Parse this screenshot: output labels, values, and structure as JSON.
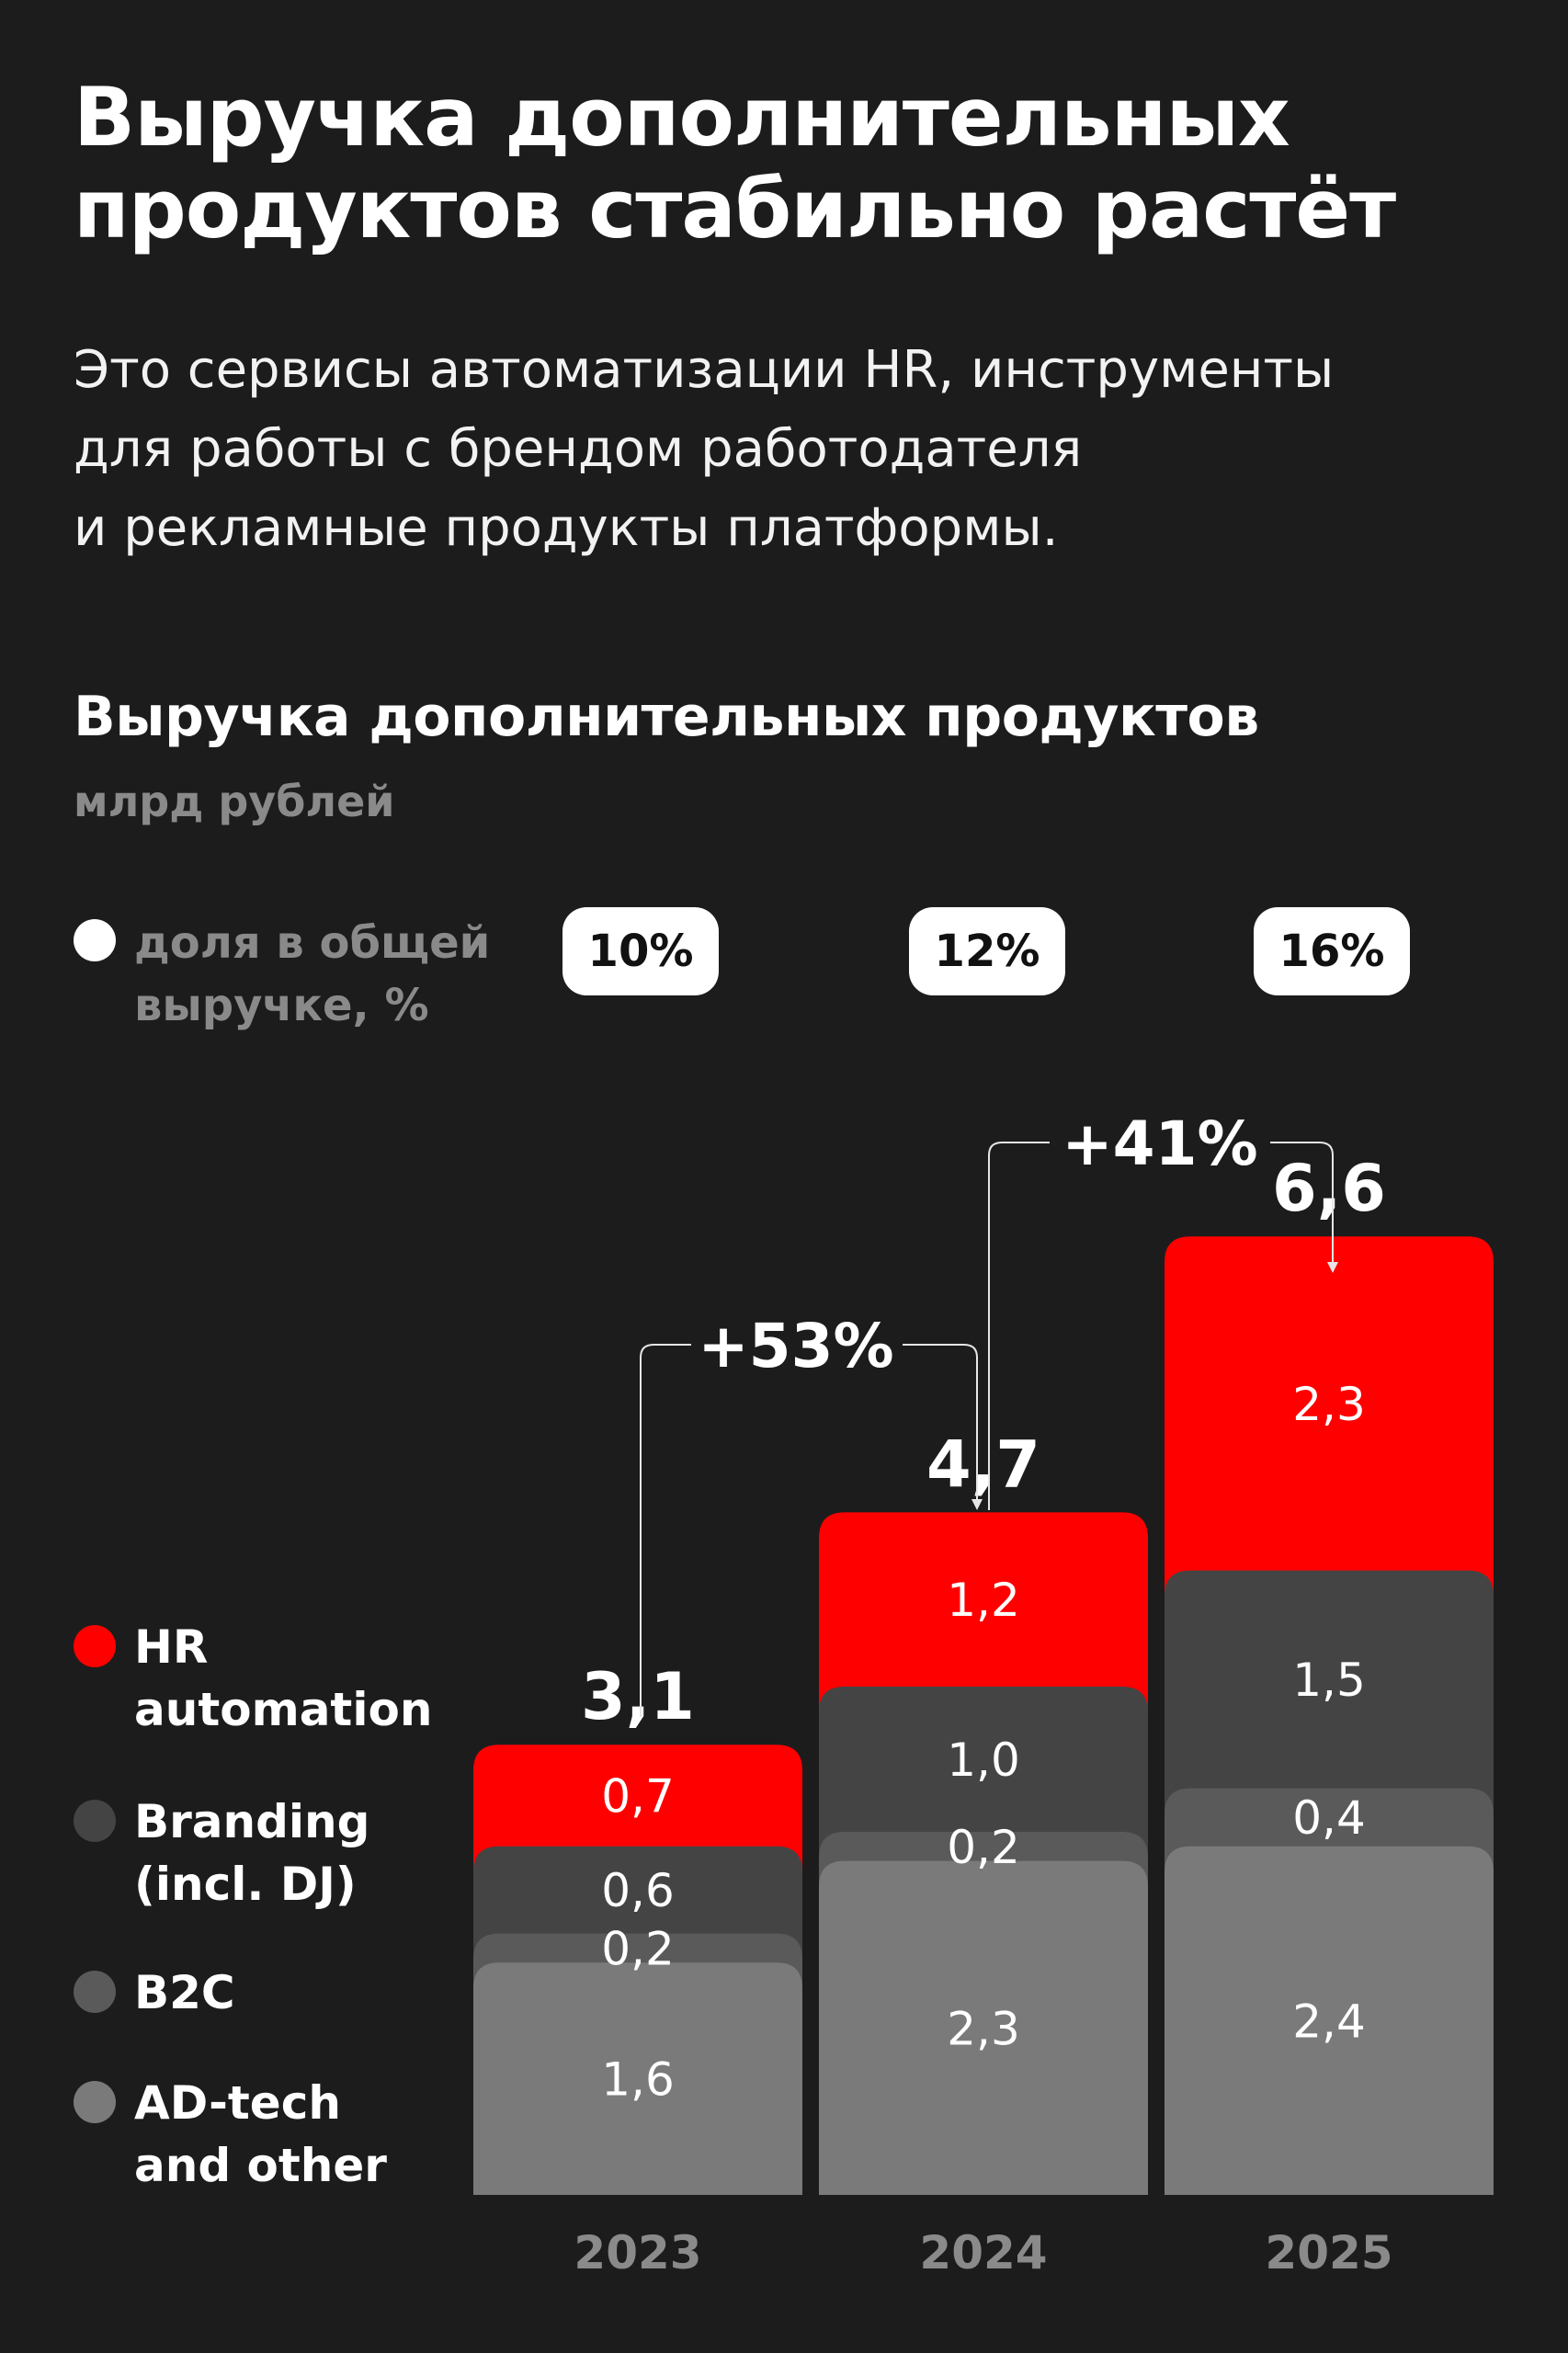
{
  "headline": {
    "line1": "Выручка дополнительных",
    "line2": "продуктов стабильно растёт"
  },
  "lede": {
    "line1": "Это сервисы автоматизации HR, инструменты",
    "line2": "для работы с брендом работодателя",
    "line3": "и рекламные продукты платформы."
  },
  "chart_data": {
    "type": "bar",
    "stacked": true,
    "title": "Выручка дополнительных продуктов",
    "unit": "млрд рублей",
    "categories": [
      "2023",
      "2024",
      "2025"
    ],
    "series": [
      {
        "name": "AD-tech and other",
        "color": "#7a7a7a",
        "values": [
          1.6,
          2.3,
          2.4
        ],
        "labels": [
          "1,6",
          "2,3",
          "2,4"
        ]
      },
      {
        "name": "B2C",
        "color": "#5a5a5a",
        "values": [
          0.2,
          0.2,
          0.4
        ],
        "labels": [
          "0,2",
          "0,2",
          "0,4"
        ]
      },
      {
        "name": "Branding (incl. DJ)",
        "color": "#444444",
        "values": [
          0.6,
          1.0,
          1.5
        ],
        "labels": [
          "0,6",
          "1,0",
          "1,5"
        ]
      },
      {
        "name": "HR automation",
        "color": "#ff0000",
        "values": [
          0.7,
          1.2,
          2.3
        ],
        "labels": [
          "0,7",
          "1,2",
          "2,3"
        ]
      }
    ],
    "totals": [
      3.1,
      4.7,
      6.6
    ],
    "total_labels": [
      "3,1",
      "4,7",
      "6,6"
    ],
    "share_label": "доля в общей выручке, %",
    "share_of_total": [
      "10%",
      "12%",
      "16%"
    ],
    "growth": [
      {
        "from": "2023",
        "to": "2024",
        "label": "+53%"
      },
      {
        "from": "2024",
        "to": "2025",
        "label": "+41%"
      }
    ],
    "legend": {
      "share": {
        "line1": "доля в общей",
        "line2": "выручке, %"
      },
      "hr": {
        "line1": "HR",
        "line2": "automation"
      },
      "branding": {
        "line1": "Branding",
        "line2": "(incl. DJ)"
      },
      "b2c": {
        "line1": "B2C"
      },
      "adtech": {
        "line1": "AD-tech",
        "line2": "and other"
      }
    }
  }
}
